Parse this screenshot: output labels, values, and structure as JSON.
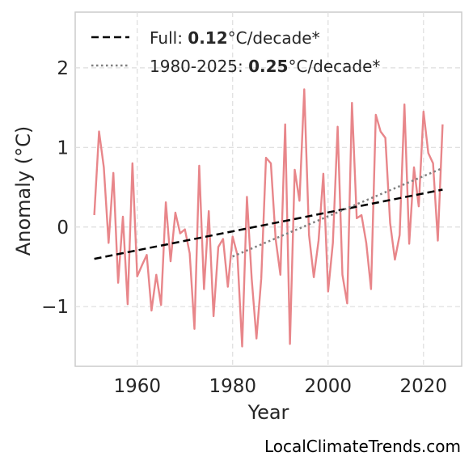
{
  "chart_data": {
    "type": "line",
    "title": "",
    "xlabel": "Year",
    "ylabel": "Anomaly (°C)",
    "xlim": [
      1947,
      2028
    ],
    "ylim": [
      -1.75,
      2.7
    ],
    "xticks": [
      1960,
      1980,
      2000,
      2020
    ],
    "yticks": [
      -1,
      0,
      1,
      2
    ],
    "ytick_labels": [
      "−1",
      "0",
      "1",
      "2"
    ],
    "grid": true,
    "legend_position": "top-left",
    "series": [
      {
        "style": "solid",
        "color": "#e8868a",
        "x": [
          1951,
          1952,
          1953,
          1954,
          1955,
          1956,
          1957,
          1958,
          1959,
          1960,
          1961,
          1962,
          1963,
          1964,
          1965,
          1966,
          1967,
          1968,
          1969,
          1970,
          1971,
          1972,
          1973,
          1974,
          1975,
          1976,
          1977,
          1978,
          1979,
          1980,
          1981,
          1982,
          1983,
          1984,
          1985,
          1986,
          1987,
          1988,
          1989,
          1990,
          1991,
          1992,
          1993,
          1994,
          1995,
          1996,
          1997,
          1998,
          1999,
          2000,
          2001,
          2002,
          2003,
          2004,
          2005,
          2006,
          2007,
          2008,
          2009,
          2010,
          2011,
          2012,
          2013,
          2014,
          2015,
          2016,
          2017,
          2018,
          2019,
          2020,
          2021,
          2022,
          2023,
          2024
        ],
        "values": [
          0.15,
          1.2,
          0.75,
          -0.2,
          0.68,
          -0.7,
          0.13,
          -0.97,
          0.8,
          -0.62,
          -0.48,
          -0.35,
          -1.05,
          -0.6,
          -0.98,
          0.31,
          -0.43,
          0.18,
          -0.08,
          -0.03,
          -0.33,
          -1.28,
          0.77,
          -0.78,
          0.2,
          -1.12,
          -0.25,
          -0.15,
          -0.75,
          -0.12,
          -0.35,
          -1.5,
          0.38,
          -0.65,
          -1.4,
          -0.65,
          0.87,
          0.8,
          -0.15,
          -0.6,
          1.29,
          -1.47,
          0.72,
          0.33,
          1.73,
          -0.1,
          -0.63,
          -0.17,
          0.67,
          -0.81,
          -0.2,
          1.26,
          -0.6,
          -0.96,
          1.56,
          0.11,
          0.15,
          -0.2,
          -0.78,
          1.41,
          1.2,
          1.12,
          0.05,
          -0.41,
          -0.1,
          1.54,
          -0.21,
          0.75,
          0.26,
          1.45,
          0.93,
          0.8,
          -0.17,
          1.29
        ]
      },
      {
        "name": "Full",
        "style": "dashed",
        "color": "#000000",
        "x": [
          1951,
          2024
        ],
        "values": [
          -0.4,
          0.47
        ]
      },
      {
        "name": "1980-2025",
        "style": "dotted",
        "color": "#808080",
        "x": [
          1980,
          2024
        ],
        "values": [
          -0.37,
          0.74
        ]
      }
    ],
    "legend": [
      {
        "prefix": "Full: ",
        "value": "0.12",
        "suffix": "°C/decade*"
      },
      {
        "prefix": "1980-2025: ",
        "value": "0.25",
        "suffix": "°C/decade*"
      }
    ]
  },
  "watermark": "LocalClimateTrends.com"
}
